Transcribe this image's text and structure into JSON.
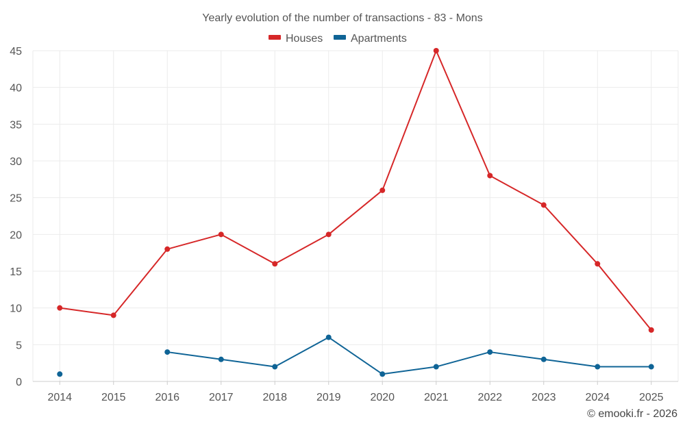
{
  "chart_data": {
    "type": "line",
    "title": "Yearly evolution of the number of transactions - 83 - Mons",
    "categories": [
      "2014",
      "2015",
      "2016",
      "2017",
      "2018",
      "2019",
      "2020",
      "2021",
      "2022",
      "2023",
      "2024",
      "2025"
    ],
    "series": [
      {
        "name": "Houses",
        "color": "#d62728",
        "values": [
          10,
          9,
          18,
          20,
          16,
          20,
          26,
          45,
          28,
          24,
          16,
          7
        ]
      },
      {
        "name": "Apartments",
        "color": "#0f6496",
        "values": [
          1,
          null,
          4,
          3,
          2,
          6,
          1,
          2,
          4,
          3,
          2,
          2
        ]
      }
    ],
    "ylim": [
      0,
      45
    ],
    "yticks": [
      0,
      5,
      10,
      15,
      20,
      25,
      30,
      35,
      40,
      45
    ],
    "xlabel": "",
    "ylabel": "",
    "grid": true,
    "legend_position": "top-center"
  },
  "credit": "© emooki.fr - 2026"
}
